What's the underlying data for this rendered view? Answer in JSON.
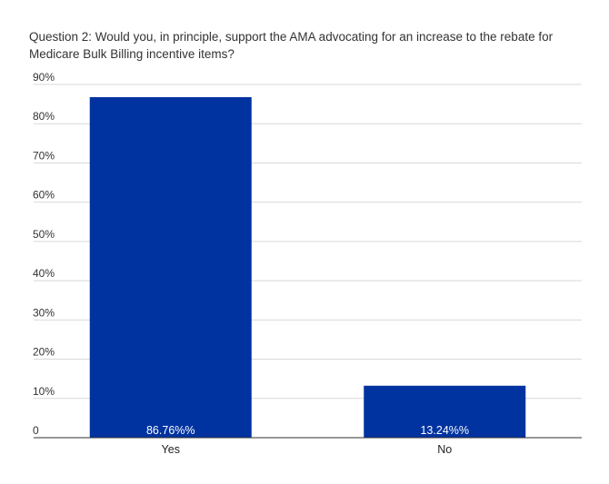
{
  "chart_data": {
    "type": "bar",
    "title": "Question 2: Would you, in principle, support the AMA advocating for an increase to the rebate for Medicare Bulk Billing incentive items?",
    "categories": [
      "Yes",
      "No"
    ],
    "values": [
      86.76,
      13.24
    ],
    "data_labels": [
      "86.76%%",
      "13.24%%"
    ],
    "ylim": [
      0,
      90
    ],
    "yticks": [
      "0",
      "10%",
      "20%",
      "30%",
      "40%",
      "50%",
      "60%",
      "70%",
      "80%",
      "90%"
    ],
    "xlabel": "",
    "ylabel": "",
    "grid": true,
    "bar_color": "#0033a0"
  }
}
